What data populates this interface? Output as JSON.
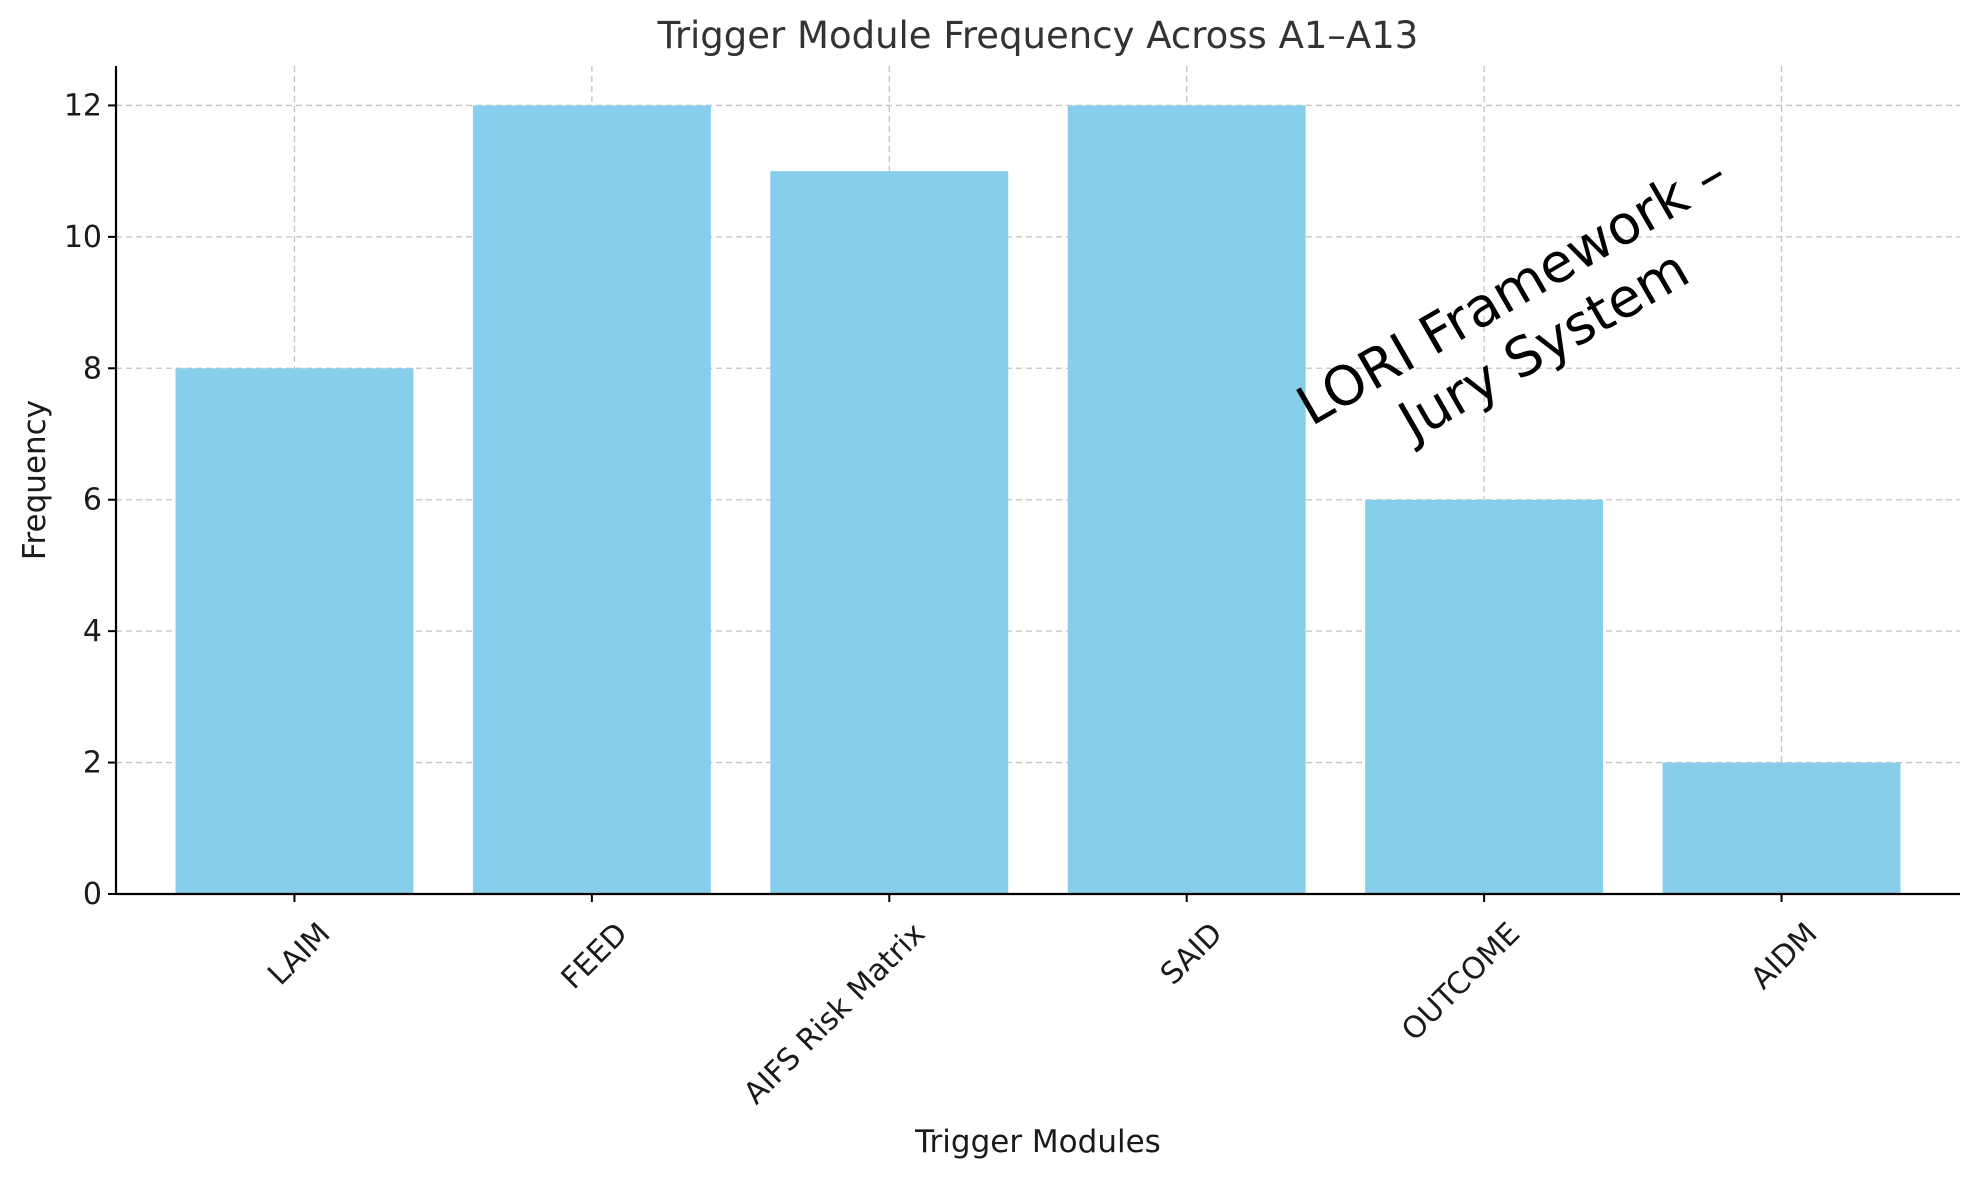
{
  "chart_data": {
    "type": "bar",
    "title": "Trigger Module Frequency Across A1–A13",
    "xlabel": "Trigger Modules",
    "ylabel": "Frequency",
    "categories": [
      "LAIM",
      "FEED",
      "AIFS Risk Matrix",
      "SAID",
      "OUTCOME",
      "AIDM"
    ],
    "values": [
      8,
      12,
      11,
      12,
      6,
      2
    ],
    "ylim": [
      0,
      12.6
    ],
    "yticks": [
      0,
      2,
      4,
      6,
      8,
      10,
      12
    ],
    "grid": true,
    "bar_color": "#87CEEB",
    "annotation": {
      "line1": "LORI Framework –",
      "line2": "Jury System"
    }
  }
}
